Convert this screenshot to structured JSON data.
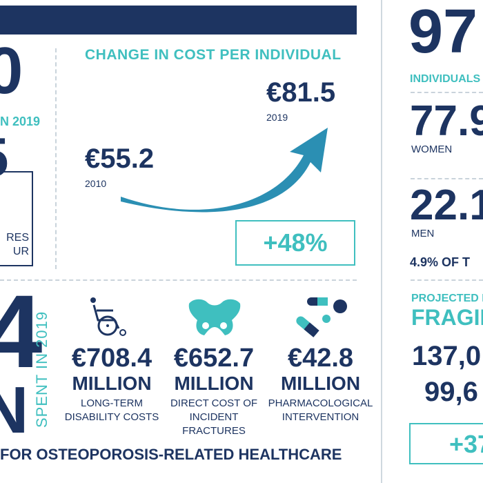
{
  "left_partial": {
    "big_number": "0",
    "year_label": "N 2019",
    "second_number": "5",
    "box_line1": "RES",
    "box_line2": "UR"
  },
  "cost_change": {
    "title": "CHANGE IN COST PER INDIVIDUAL",
    "value_2010": "€55.2",
    "year_2010": "2010",
    "value_2019": "€81.5",
    "year_2019": "2019",
    "change": "+48%"
  },
  "spent": {
    "big_digit": "4",
    "big_letter": "N",
    "vertical_label": "SPENT IN 2019",
    "footer": "FOR OSTEOPOROSIS-RELATED HEALTHCARE",
    "items": [
      {
        "icon": "wheelchair-icon",
        "value": "€708.4",
        "unit": "MILLION",
        "desc_lines": [
          "LONG-TERM",
          "DISABILITY COSTS"
        ]
      },
      {
        "icon": "pelvis-icon",
        "value": "€652.7",
        "unit": "MILLION",
        "desc_lines": [
          "DIRECT COST OF",
          "INCIDENT",
          "FRACTURES"
        ]
      },
      {
        "icon": "pills-icon",
        "value": "€42.8",
        "unit": "MILLION",
        "desc_lines": [
          "PHARMACOLOGICAL",
          "INTERVENTION"
        ]
      }
    ]
  },
  "right_panel": {
    "big_number": "97",
    "individuals_label": "INDIVIDUALS",
    "women_value": "77.9",
    "women_label": "WOMEN",
    "men_value": "22.1",
    "men_label": "MEN",
    "percent_text": "4.9% OF T",
    "projected_label": "PROJECTED I",
    "fragil_label": "FRAGIL",
    "value_a": "137,0",
    "value_b": "99,6",
    "change_box": "+37"
  },
  "colors": {
    "navy": "#1d3461",
    "teal": "#3fbfbf",
    "arrow": "#2b8fb3",
    "divider": "#c9d3db"
  }
}
